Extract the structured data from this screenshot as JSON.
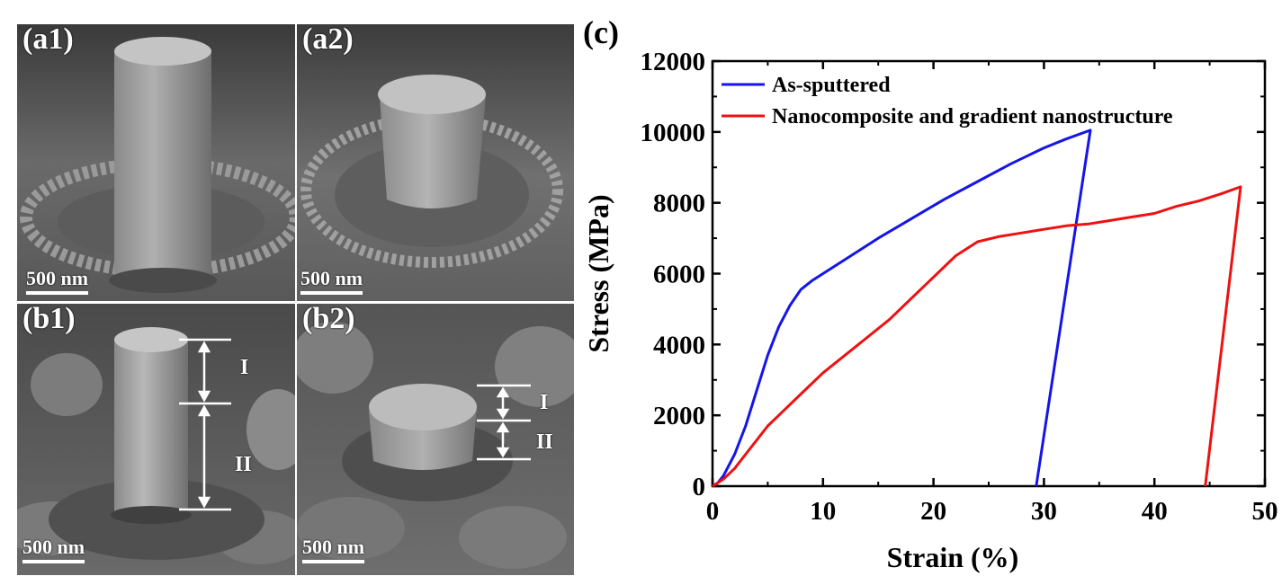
{
  "panels": {
    "a1": {
      "label": "(a1)",
      "scale": "500 nm"
    },
    "a2": {
      "label": "(a2)",
      "scale": "500 nm"
    },
    "b1": {
      "label": "(b1)",
      "scale": "500 nm",
      "region_labels": [
        "I",
        "II"
      ]
    },
    "b2": {
      "label": "(b2)",
      "scale": "500 nm",
      "region_labels": [
        "I",
        "II"
      ]
    }
  },
  "chart_data": {
    "type": "line",
    "panel_label": "(c)",
    "title": "",
    "xlabel": "Strain (%)",
    "ylabel": "Stress (MPa)",
    "xlim": [
      0,
      50
    ],
    "ylim": [
      0,
      12000
    ],
    "xticks": [
      0,
      10,
      20,
      30,
      40,
      50
    ],
    "yticks": [
      0,
      2000,
      4000,
      6000,
      8000,
      10000,
      12000
    ],
    "legend_position": "top-left",
    "series": [
      {
        "name": "As-sputtered",
        "color": "#1515e8",
        "x": [
          0,
          0.5,
          1,
          2,
          3,
          4,
          5,
          6,
          7,
          8,
          9,
          10,
          12,
          15,
          18,
          21,
          24,
          27,
          30,
          32,
          34.2,
          29.3
        ],
        "y": [
          0,
          100,
          300,
          900,
          1700,
          2700,
          3700,
          4500,
          5100,
          5550,
          5800,
          6000,
          6400,
          7000,
          7550,
          8100,
          8600,
          9100,
          9550,
          9800,
          10050,
          0
        ]
      },
      {
        "name": "Nanocomposite and gradient nanostructure",
        "color": "#ee1111",
        "x": [
          0,
          1,
          2,
          3,
          4,
          5,
          6,
          8,
          10,
          12,
          14,
          16,
          18,
          20,
          21,
          22,
          23,
          24,
          26,
          28,
          30,
          32,
          34,
          36,
          38,
          40,
          42,
          44,
          46,
          47.8,
          44.6
        ],
        "y": [
          0,
          200,
          500,
          900,
          1300,
          1700,
          2000,
          2600,
          3200,
          3700,
          4200,
          4700,
          5300,
          5900,
          6200,
          6500,
          6700,
          6900,
          7050,
          7150,
          7250,
          7350,
          7400,
          7500,
          7600,
          7700,
          7900,
          8050,
          8250,
          8450,
          0
        ]
      }
    ]
  }
}
